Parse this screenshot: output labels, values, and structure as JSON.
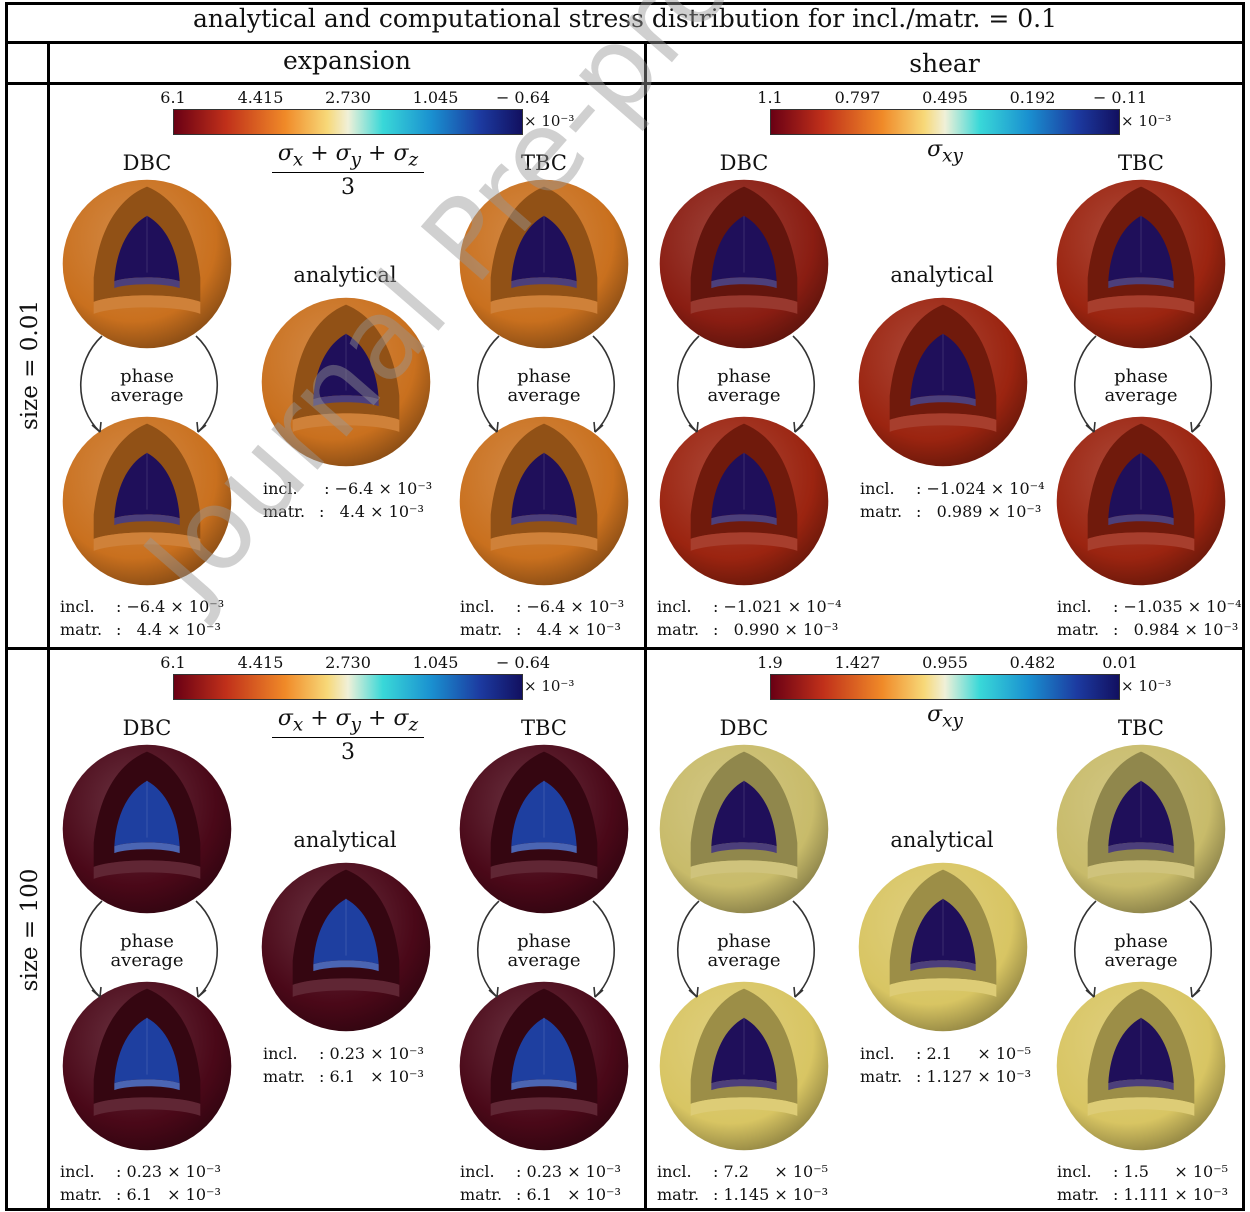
{
  "title": "analytical and computational stress distribution for incl./matr. = 0.1",
  "columns": [
    {
      "label": "expansion"
    },
    {
      "label": "shear"
    }
  ],
  "rows": [
    {
      "label": "size = 0.01"
    },
    {
      "label": "size = 100"
    }
  ],
  "labels": {
    "dbc": "DBC",
    "tbc": "TBC",
    "analytical": "analytical",
    "phase_line1": "phase",
    "phase_line2": "average",
    "incl": "incl.",
    "matr": "matr.",
    "exponent": "× 10⁻³"
  },
  "cells": [
    {
      "colorbar": {
        "ticks": [
          "6.1",
          "4.415",
          "2.730",
          "1.045",
          "− 0.64"
        ],
        "scheme": "reverse-turbo"
      },
      "quantity": "expansion",
      "colors": {
        "shell": "#c9701e",
        "core": "#1f0f5a",
        "dbc_shell": "#c9701e",
        "tbc_shell": "#c9701e"
      },
      "dbc": {
        "incl": ": −6.4 × 10⁻³",
        "matr": ":   4.4 × 10⁻³"
      },
      "analytical": {
        "incl": " : −6.4 × 10⁻³",
        "matr": ":   4.4 × 10⁻³"
      },
      "tbc": {
        "incl": ": −6.4 × 10⁻³",
        "matr": ":   4.4 × 10⁻³"
      }
    },
    {
      "colorbar": {
        "ticks": [
          "1.1",
          "0.797",
          "0.495",
          "0.192",
          "− 0.11"
        ],
        "scheme": "reverse-turbo"
      },
      "quantity": "shear",
      "colors": {
        "shell": "#9b2410",
        "core": "#1f0f5a",
        "dbc_shell": "#8a1d12",
        "tbc_shell": "#9b2410"
      },
      "dbc": {
        "incl": ": −1.021 × 10⁻⁴",
        "matr": ":   0.990 × 10⁻³"
      },
      "analytical": {
        "incl": ": −1.024 × 10⁻⁴",
        "matr": ":   0.989 × 10⁻³"
      },
      "tbc": {
        "incl": ": −1.035 × 10⁻⁴",
        "matr": ":   0.984 × 10⁻³"
      }
    },
    {
      "colorbar": {
        "ticks": [
          "6.1",
          "4.415",
          "2.730",
          "1.045",
          "− 0.64"
        ],
        "scheme": "reverse-turbo"
      },
      "quantity": "expansion",
      "colors": {
        "shell": "#4a0818",
        "core": "#1e3fa0",
        "dbc_shell": "#4a0818",
        "tbc_shell": "#4a0818"
      },
      "dbc": {
        "incl": ": 0.23 × 10⁻³",
        "matr": ": 6.1   × 10⁻³"
      },
      "analytical": {
        "incl": ": 0.23 × 10⁻³",
        "matr": ": 6.1   × 10⁻³"
      },
      "tbc": {
        "incl": ": 0.23 × 10⁻³",
        "matr": ": 6.1   × 10⁻³"
      }
    },
    {
      "colorbar": {
        "ticks": [
          "1.9",
          "1.427",
          "0.955",
          "0.482",
          "0.01"
        ],
        "scheme": "reverse-turbo"
      },
      "quantity": "shear",
      "colors": {
        "shell": "#d8c563",
        "core": "#1f0f5a",
        "dbc_shell": "#c8bb6a",
        "tbc_shell": "#c8bb6a"
      },
      "dbc": {
        "incl": ": 7.2     × 10⁻⁵",
        "matr": ": 1.145 × 10⁻³"
      },
      "analytical": {
        "incl": ": 2.1     × 10⁻⁵",
        "matr": ": 1.127 × 10⁻³"
      },
      "tbc": {
        "incl": ": 1.5     × 10⁻⁵",
        "matr": ": 1.111 × 10⁻³"
      }
    }
  ],
  "watermark": "Journal Pre-proof"
}
